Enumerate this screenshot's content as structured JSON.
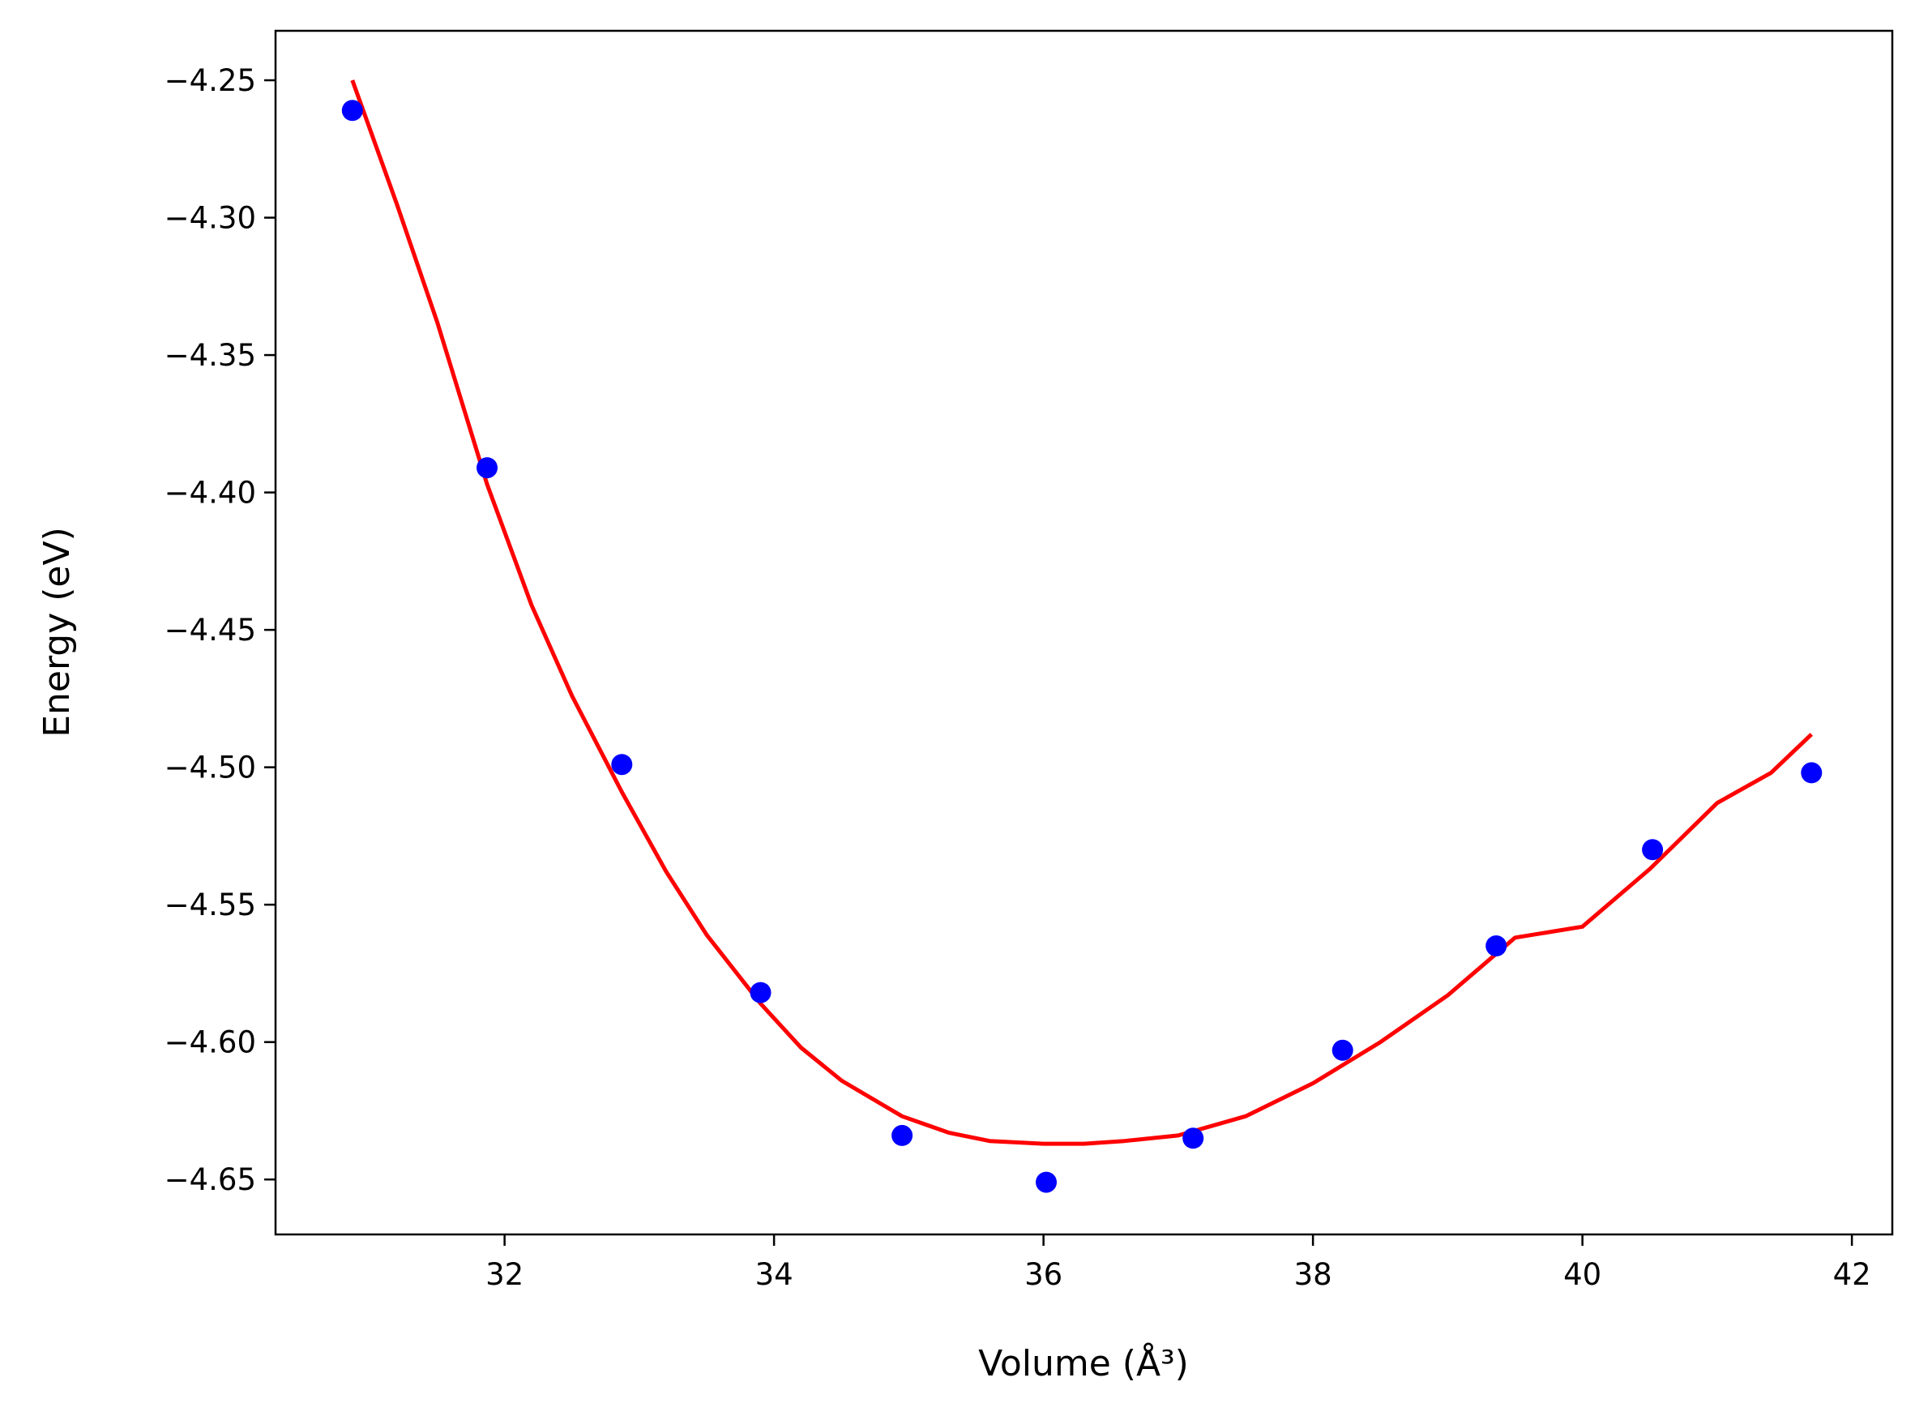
{
  "chart_data": {
    "type": "scatter",
    "xlabel": "Volume (Å³)",
    "ylabel": "Energy (eV)",
    "xlim": [
      30.3,
      42.3
    ],
    "ylim": [
      -4.67,
      -4.232
    ],
    "grid": false,
    "xticks": [
      {
        "value": 32,
        "label": "32"
      },
      {
        "value": 34,
        "label": "34"
      },
      {
        "value": 36,
        "label": "36"
      },
      {
        "value": 38,
        "label": "38"
      },
      {
        "value": 40,
        "label": "40"
      },
      {
        "value": 42,
        "label": "42"
      }
    ],
    "yticks": [
      {
        "value": -4.25,
        "label": "−4.25"
      },
      {
        "value": -4.3,
        "label": "−4.30"
      },
      {
        "value": -4.35,
        "label": "−4.35"
      },
      {
        "value": -4.4,
        "label": "−4.40"
      },
      {
        "value": -4.45,
        "label": "−4.45"
      },
      {
        "value": -4.5,
        "label": "−4.50"
      },
      {
        "value": -4.55,
        "label": "−4.55"
      },
      {
        "value": -4.6,
        "label": "−4.60"
      },
      {
        "value": -4.65,
        "label": "−4.65"
      }
    ],
    "series": [
      {
        "kind": "scatter",
        "color": "#0000ff",
        "x": [
          30.87,
          31.87,
          32.87,
          33.9,
          34.95,
          36.02,
          37.11,
          38.22,
          39.36,
          40.52,
          41.7
        ],
        "y": [
          -4.261,
          -4.391,
          -4.499,
          -4.582,
          -4.634,
          -4.651,
          -4.635,
          -4.603,
          -4.565,
          -4.53,
          -4.502
        ]
      },
      {
        "kind": "line",
        "color": "#ff0000",
        "x": [
          30.87,
          31.2,
          31.5,
          31.87,
          32.2,
          32.5,
          32.87,
          33.2,
          33.5,
          33.9,
          34.2,
          34.5,
          34.95,
          35.3,
          35.6,
          36.0,
          36.3,
          36.6,
          37.0,
          37.5,
          38.0,
          38.5,
          39.0,
          39.5,
          40.0,
          40.5,
          41.0,
          41.4,
          41.7
        ],
        "y": [
          -4.25,
          -4.295,
          -4.338,
          -4.397,
          -4.441,
          -4.474,
          -4.509,
          -4.538,
          -4.561,
          -4.586,
          -4.602,
          -4.614,
          -4.627,
          -4.633,
          -4.636,
          -4.637,
          -4.637,
          -4.636,
          -4.634,
          -4.627,
          -4.615,
          -4.6,
          -4.583,
          -4.562,
          -4.558,
          -4.537,
          -4.513,
          -4.502,
          -4.488
        ]
      }
    ]
  }
}
